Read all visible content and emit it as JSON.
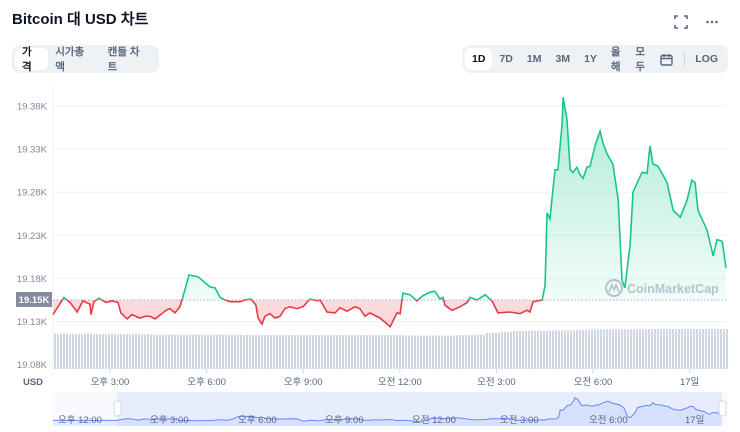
{
  "header": {
    "title": "Bitcoin 대 USD 차트",
    "fullscreen_icon": "expand-icon",
    "more_icon": "more-dots-icon"
  },
  "view_tabs": [
    {
      "label": "가격",
      "active": true
    },
    {
      "label": "시가총액",
      "active": false
    },
    {
      "label": "캔들 차트",
      "active": false
    }
  ],
  "range_tabs": [
    {
      "label": "1D",
      "active": true
    },
    {
      "label": "7D"
    },
    {
      "label": "1M"
    },
    {
      "label": "3M"
    },
    {
      "label": "1Y"
    },
    {
      "label": "올해"
    },
    {
      "label": "모두"
    }
  ],
  "calendar_icon": "calendar-icon",
  "log_label": "LOG",
  "watermark": "CoinMarketCap",
  "colors": {
    "up": "#16c784",
    "down": "#ea3943",
    "volume": "#cfd6e4",
    "navigator": "#6188ff",
    "baseline_label_bg": "#858ca2"
  },
  "chart_data": {
    "type": "line",
    "title": "Bitcoin 대 USD 차트",
    "ylabel": "USD",
    "xlabel": "",
    "currency_label": "USD",
    "yticks": [
      19080,
      19130,
      19180,
      19230,
      19280,
      19330,
      19380
    ],
    "ytick_labels": [
      "19.08K",
      "19.13K",
      "19.18K",
      "19.23K",
      "19.28K",
      "19.33K",
      "19.38K"
    ],
    "ylim": [
      19070,
      19405
    ],
    "xlim_hours_since_noon": [
      1.23,
      22.16
    ],
    "xticks": [
      3,
      6,
      9,
      12,
      15,
      18,
      21
    ],
    "xtick_labels": [
      "오후 3:00",
      "오후 6:00",
      "오후 9:00",
      "오전 12:00",
      "오전 3:00",
      "오전 6:00",
      "17일"
    ],
    "baseline": {
      "value": 19155,
      "label": "19.15K"
    },
    "grid": true,
    "x": [
      1.23,
      1.57,
      1.76,
      1.98,
      2.16,
      2.38,
      2.41,
      2.5,
      2.66,
      2.88,
      3.06,
      3.25,
      3.34,
      3.53,
      3.68,
      3.93,
      4.09,
      4.24,
      4.4,
      4.61,
      4.74,
      4.86,
      5.02,
      5.17,
      5.33,
      5.45,
      5.58,
      5.73,
      5.95,
      6.11,
      6.26,
      6.42,
      6.57,
      6.73,
      7.04,
      7.19,
      7.38,
      7.53,
      7.6,
      7.72,
      7.81,
      7.97,
      8.12,
      8.28,
      8.43,
      8.59,
      8.81,
      8.99,
      9.21,
      9.46,
      9.52,
      9.74,
      9.99,
      10.14,
      10.36,
      10.61,
      10.76,
      10.92,
      11.07,
      11.39,
      11.7,
      11.91,
      12.01,
      12.1,
      12.32,
      12.53,
      12.72,
      12.94,
      13.09,
      13.25,
      13.34,
      13.4,
      13.62,
      13.87,
      14.09,
      14.18,
      14.4,
      14.65,
      14.86,
      15.05,
      15.42,
      15.73,
      15.95,
      16.04,
      16.14,
      16.42,
      16.51,
      16.57,
      16.66,
      16.82,
      16.91,
      17.04,
      17.07,
      17.19,
      17.29,
      17.38,
      17.5,
      17.6,
      17.69,
      17.81,
      17.91,
      18.06,
      18.22,
      18.31,
      18.43,
      18.62,
      18.78,
      18.9,
      18.99,
      19.15,
      19.24,
      19.37,
      19.52,
      19.68,
      19.77,
      19.86,
      20.02,
      20.3,
      20.49,
      20.71,
      20.92,
      21.07,
      21.17,
      21.26,
      21.54,
      21.73,
      21.85,
      22.01,
      22.13
    ],
    "values": [
      19138,
      19158,
      19152,
      19141,
      19154,
      19150,
      19138,
      19153,
      19157,
      19152,
      19154,
      19152,
      19140,
      19133,
      19138,
      19134,
      19136,
      19136,
      19133,
      19139,
      19143,
      19145,
      19140,
      19147,
      19167,
      19184,
      19183,
      19182,
      19175,
      19170,
      19169,
      19158,
      19155,
      19153,
      19153,
      19155,
      19156,
      19149,
      19134,
      19127,
      19136,
      19139,
      19134,
      19136,
      19145,
      19147,
      19145,
      19147,
      19156,
      19154,
      19155,
      19141,
      19140,
      19146,
      19142,
      19147,
      19145,
      19136,
      19140,
      19134,
      19124,
      19140,
      19139,
      19163,
      19161,
      19154,
      19160,
      19164,
      19165,
      19156,
      19158,
      19149,
      19143,
      19147,
      19152,
      19158,
      19155,
      19161,
      19154,
      19140,
      19141,
      19139,
      19143,
      19141,
      19153,
      19155,
      19172,
      19256,
      19249,
      19306,
      19306,
      19359,
      19390,
      19364,
      19306,
      19303,
      19309,
      19300,
      19296,
      19309,
      19310,
      19334,
      19351,
      19337,
      19325,
      19312,
      19271,
      19178,
      19169,
      19219,
      19280,
      19291,
      19303,
      19302,
      19334,
      19313,
      19310,
      19291,
      19259,
      19251,
      19271,
      19294,
      19291,
      19259,
      19236,
      19206,
      19225,
      19223,
      19192
    ],
    "volume_relative": [
      0.8,
      0.8,
      0.8,
      0.79,
      0.79,
      0.79,
      0.79,
      0.78,
      0.78,
      0.78,
      0.78,
      0.78,
      0.78,
      0.78,
      0.77,
      0.77,
      0.77,
      0.77,
      0.77,
      0.77,
      0.77,
      0.77,
      0.77,
      0.77,
      0.77,
      0.77,
      0.76,
      0.76,
      0.76,
      0.76,
      0.77,
      0.78,
      0.82,
      0.85,
      0.86,
      0.87,
      0.87,
      0.88,
      0.88,
      0.89,
      0.9,
      0.9,
      0.9,
      0.9,
      0.91,
      0.91,
      0.91,
      0.91,
      0.91,
      0.91
    ],
    "navigator": {
      "labels": [
        "오후 12:00",
        "오후 3:00",
        "오후 6:00",
        "오후 9:00",
        "오전 12:00",
        "오전 3:00",
        "오전 6:00",
        "17일"
      ]
    }
  }
}
